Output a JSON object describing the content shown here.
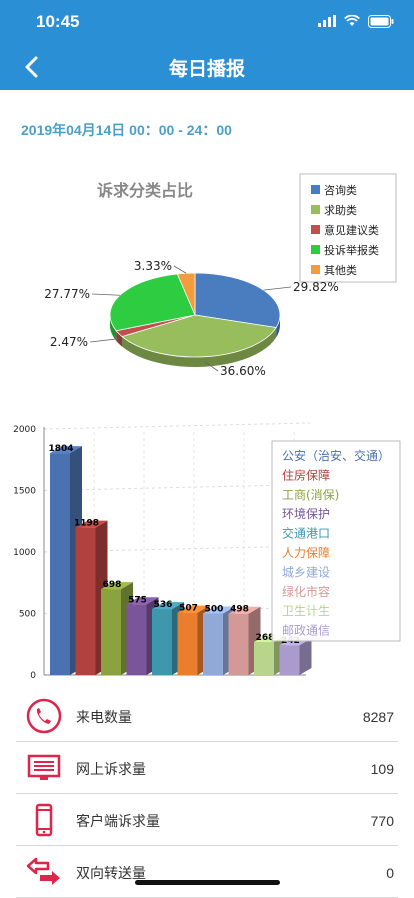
{
  "status": {
    "time": "10:45"
  },
  "nav": {
    "title": "每日播报"
  },
  "date_range": "2019年04月14日 00：00 - 24：00",
  "chart_data": [
    {
      "type": "pie",
      "title": "诉求分类占比",
      "legend_position": "top-right",
      "categories": [
        "咨询类",
        "求助类",
        "意见建议类",
        "投诉举报类",
        "其他类"
      ],
      "values": [
        29.82,
        36.6,
        2.47,
        27.77,
        3.33
      ],
      "labels": [
        "29.82%",
        "36.60%",
        "2.47%",
        "27.77%",
        "3.33%"
      ],
      "colors": [
        "#4a7dbf",
        "#98bd5c",
        "#c0504d",
        "#2ecc40",
        "#f39c3c"
      ]
    },
    {
      "type": "bar",
      "categories": [
        "公安（治安、交通）",
        "住房保障",
        "工商(消保)",
        "环境保护",
        "交通港口",
        "人力保障",
        "城乡建设",
        "绿化市容",
        "卫生计生",
        "邮政通信"
      ],
      "values": [
        1804,
        1198,
        698,
        575,
        536,
        507,
        500,
        498,
        268,
        242
      ],
      "value_labels": [
        "1804",
        "1198",
        "698",
        "575",
        "536",
        "507",
        "500",
        "498",
        "268",
        "242"
      ],
      "ylim": [
        0,
        2000
      ],
      "yticks": [
        "0",
        "500",
        "1000",
        "1500",
        "2000"
      ],
      "grid": true,
      "legend_position": "right",
      "colors": [
        "#4a72b0",
        "#b0413e",
        "#8aa33f",
        "#7a559a",
        "#3f97ad",
        "#ea7d2e",
        "#90a9d6",
        "#d39996",
        "#b9d58b",
        "#a99ccc"
      ]
    }
  ],
  "stats": [
    {
      "label": "来电数量",
      "value": "8287",
      "icon": "phone-icon"
    },
    {
      "label": "网上诉求量",
      "value": "109",
      "icon": "monitor-icon"
    },
    {
      "label": "客户端诉求量",
      "value": "770",
      "icon": "mobile-icon"
    },
    {
      "label": "双向转送量",
      "value": "0",
      "icon": "transfer-icon"
    }
  ]
}
